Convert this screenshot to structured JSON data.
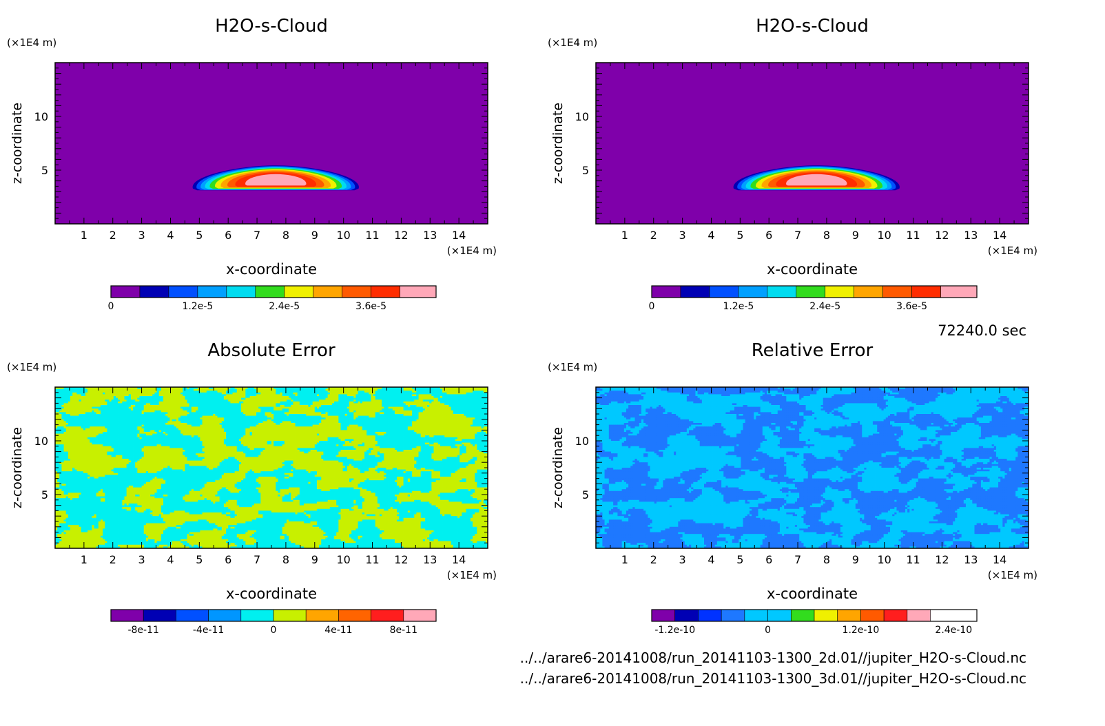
{
  "footer": {
    "time": "72240.0 sec",
    "file1": "../../arare6-20141008/run_20141103-1300_2d.01//jupiter_H2O-s-Cloud.nc",
    "file2": "../../arare6-20141008/run_20141103-1300_3d.01//jupiter_H2O-s-Cloud.nc"
  },
  "chart_data": [
    {
      "type": "heatmap",
      "title": "H2O-s-Cloud",
      "xlabel": "x-coordinate",
      "ylabel": "z-coordinate",
      "x_unit": "(×1E4 m)",
      "y_unit": "(×1E4 m)",
      "xlim": [
        0,
        15
      ],
      "ylim": [
        0,
        15
      ],
      "x_ticks": [
        "1",
        "2",
        "3",
        "4",
        "5",
        "6",
        "7",
        "8",
        "9",
        "10",
        "11",
        "12",
        "13",
        "14"
      ],
      "y_ticks": [
        "5",
        "10"
      ],
      "field": "cloud",
      "cloud_blob": {
        "center_x": 7.65,
        "center_z": 4.2,
        "half_width_x": 3.0,
        "top_z": 5.5,
        "bottom_z": 3.1,
        "peak": 4.5e-05
      },
      "colorbar": {
        "levels": [
          0,
          4e-06,
          8e-06,
          1.2e-05,
          1.6e-05,
          2e-05,
          2.4e-05,
          2.8e-05,
          3.2e-05,
          3.6e-05,
          4e-05,
          4.5e-05
        ],
        "colors": [
          "#7f00aa",
          "#0000b4",
          "#0050ff",
          "#00a0ff",
          "#00dcf0",
          "#32dc1e",
          "#f0f000",
          "#ffa500",
          "#ff5a00",
          "#ff2d00",
          "#ffa8b8"
        ],
        "labels": [
          "0",
          "1.2e-5",
          "2.4e-5",
          "3.6e-5"
        ],
        "label_values": [
          0,
          1.2e-05,
          2.4e-05,
          3.6e-05
        ]
      }
    },
    {
      "type": "heatmap",
      "title": "H2O-s-Cloud",
      "xlabel": "x-coordinate",
      "ylabel": "z-coordinate",
      "x_unit": "(×1E4 m)",
      "y_unit": "(×1E4 m)",
      "xlim": [
        0,
        15
      ],
      "ylim": [
        0,
        15
      ],
      "x_ticks": [
        "1",
        "2",
        "3",
        "4",
        "5",
        "6",
        "7",
        "8",
        "9",
        "10",
        "11",
        "12",
        "13",
        "14"
      ],
      "y_ticks": [
        "5",
        "10"
      ],
      "field": "cloud",
      "cloud_blob": {
        "center_x": 7.65,
        "center_z": 4.2,
        "half_width_x": 3.0,
        "top_z": 5.5,
        "bottom_z": 3.1,
        "peak": 4.5e-05
      },
      "colorbar": {
        "levels": [
          0,
          4e-06,
          8e-06,
          1.2e-05,
          1.6e-05,
          2e-05,
          2.4e-05,
          2.8e-05,
          3.2e-05,
          3.6e-05,
          4e-05,
          4.5e-05
        ],
        "colors": [
          "#7f00aa",
          "#0000b4",
          "#0050ff",
          "#00a0ff",
          "#00dcf0",
          "#32dc1e",
          "#f0f000",
          "#ffa500",
          "#ff5a00",
          "#ff2d00",
          "#ffa8b8"
        ],
        "labels": [
          "0",
          "1.2e-5",
          "2.4e-5",
          "3.6e-5"
        ],
        "label_values": [
          0,
          1.2e-05,
          2.4e-05,
          3.6e-05
        ]
      }
    },
    {
      "type": "heatmap",
      "title": "Absolute Error",
      "xlabel": "x-coordinate",
      "ylabel": "z-coordinate",
      "x_unit": "(×1E4 m)",
      "y_unit": "(×1E4 m)",
      "xlim": [
        0,
        15
      ],
      "ylim": [
        0,
        15
      ],
      "x_ticks": [
        "1",
        "2",
        "3",
        "4",
        "5",
        "6",
        "7",
        "8",
        "9",
        "10",
        "11",
        "12",
        "13",
        "14"
      ],
      "y_ticks": [
        "5",
        "10"
      ],
      "field": "noise",
      "noise_colors": [
        "#00f0f0",
        "#c8f000"
      ],
      "colorbar": {
        "levels": [
          -1e-10,
          -8e-11,
          -6e-11,
          -4e-11,
          -2e-11,
          0,
          2e-11,
          4e-11,
          6e-11,
          8e-11,
          1e-10
        ],
        "colors": [
          "#7f00aa",
          "#0000b4",
          "#0050ff",
          "#0096ff",
          "#00f0f0",
          "#c8f000",
          "#ffa500",
          "#ff6400",
          "#ff1e1e",
          "#ffa8b8"
        ],
        "labels": [
          "-8e-11",
          "-4e-11",
          "0",
          "4e-11",
          "8e-11"
        ],
        "label_values": [
          -8e-11,
          -4e-11,
          0,
          4e-11,
          8e-11
        ]
      }
    },
    {
      "type": "heatmap",
      "title": "Relative Error",
      "xlabel": "x-coordinate",
      "ylabel": "z-coordinate",
      "x_unit": "(×1E4 m)",
      "y_unit": "(×1E4 m)",
      "xlim": [
        0,
        15
      ],
      "ylim": [
        0,
        15
      ],
      "x_ticks": [
        "1",
        "2",
        "3",
        "4",
        "5",
        "6",
        "7",
        "8",
        "9",
        "10",
        "11",
        "12",
        "13",
        "14"
      ],
      "y_ticks": [
        "5",
        "10"
      ],
      "field": "noise",
      "noise_colors": [
        "#00c8ff",
        "#1e78ff"
      ],
      "colorbar": {
        "levels": [
          -1.5e-10,
          -1.2e-10,
          -9e-11,
          -6e-11,
          -3e-11,
          0,
          3e-11,
          6e-11,
          9e-11,
          1.2e-10,
          1.5e-10,
          1.8e-10,
          2.1e-10,
          2.4e-10,
          2.7e-10
        ],
        "colors": [
          "#7f00aa",
          "#0000b4",
          "#0032ff",
          "#1e78ff",
          "#00c8ff",
          "#00c8ff",
          "#32dc1e",
          "#f0f000",
          "#ffa500",
          "#ff5a00",
          "#ff1e1e",
          "#ffa8b8"
        ],
        "labels": [
          "-1.2e-10",
          "0",
          "1.2e-10",
          "2.4e-10"
        ],
        "label_values": [
          -1.2e-10,
          0,
          1.2e-10,
          2.4e-10
        ]
      }
    }
  ]
}
